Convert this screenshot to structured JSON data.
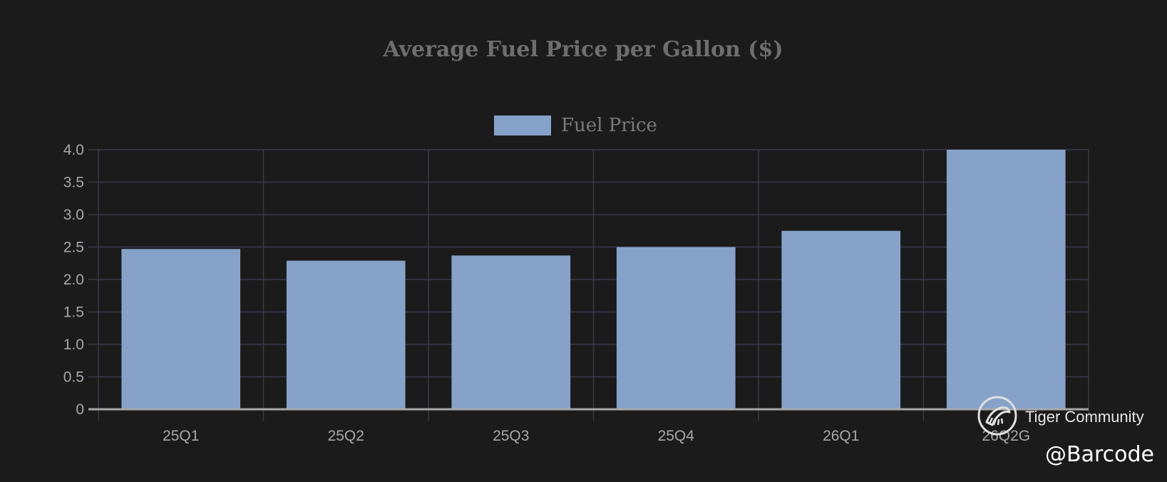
{
  "chart_data": {
    "type": "bar",
    "title": "Average Fuel Price per Gallon ($)",
    "categories": [
      "25Q1",
      "25Q2",
      "25Q3",
      "25Q4",
      "26Q1",
      "26Q2G"
    ],
    "series": [
      {
        "name": "Fuel Price",
        "values": [
          2.47,
          2.29,
          2.37,
          2.5,
          2.75,
          4.0
        ],
        "color": "#86a2c8"
      }
    ],
    "ylim": [
      0,
      4.0
    ],
    "yticks": [
      "0",
      "0.5",
      "1.0",
      "1.5",
      "2.0",
      "2.5",
      "3.0",
      "3.5",
      "4.0"
    ],
    "xlabel": "",
    "ylabel": "",
    "grid": true,
    "legend_position": "top-center"
  },
  "watermark": {
    "community": "Tiger Community",
    "handle": "@Barcode",
    "logo_icon": "tiger-logo-icon"
  },
  "colors": {
    "background": "#1b1b1b",
    "grid": "#3a3a4a",
    "bar": "#86a2c8",
    "title": "#6e6e6e"
  }
}
